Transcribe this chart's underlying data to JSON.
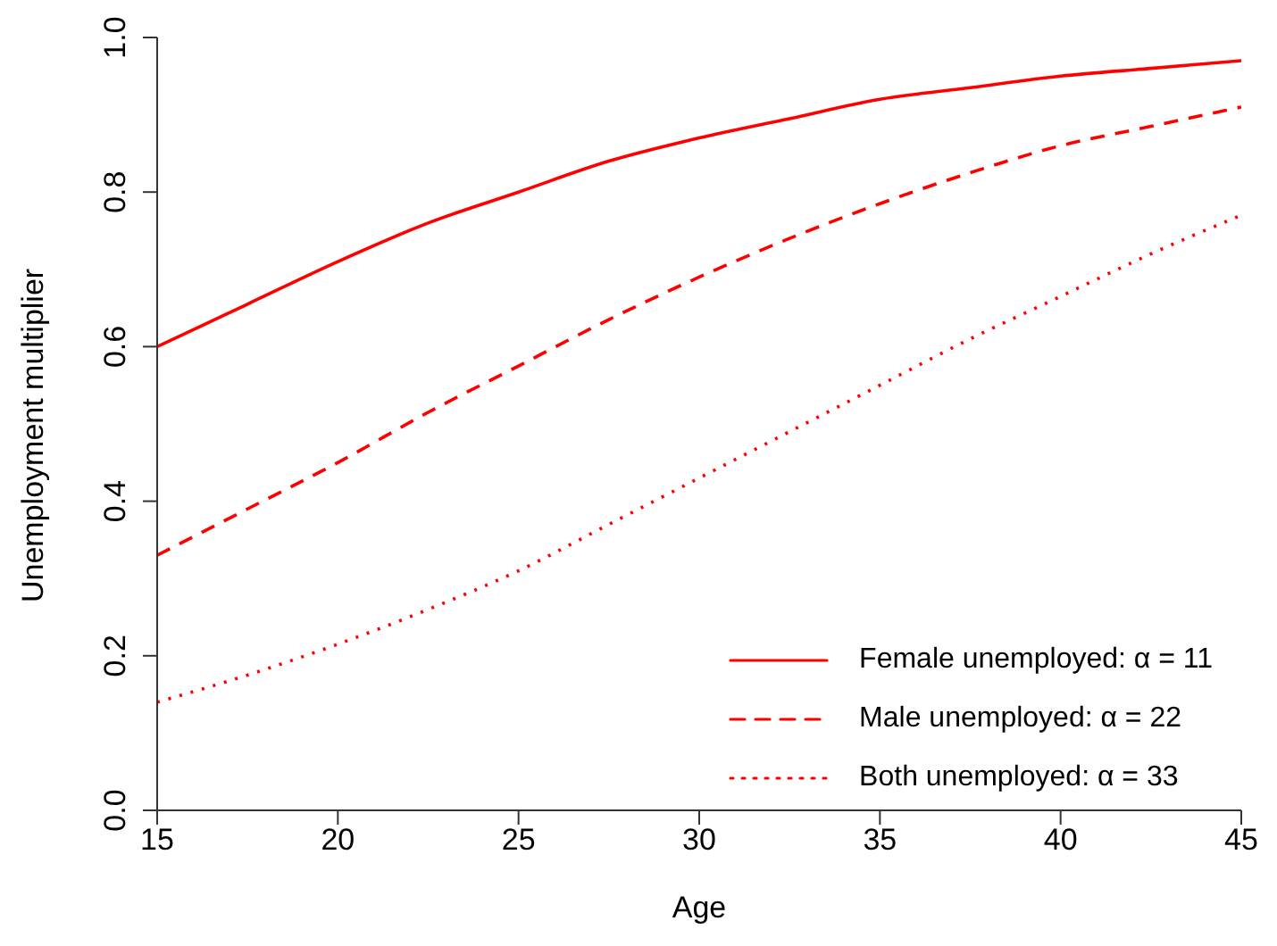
{
  "chart_data": {
    "type": "line",
    "xlabel": "Age",
    "ylabel": "Unemployment multiplier",
    "x": [
      15,
      17.5,
      20,
      22.5,
      25,
      27.5,
      30,
      32.5,
      35,
      37.5,
      40,
      42.5,
      45
    ],
    "series": [
      {
        "name": "Female unemployed: α = 11",
        "color": "#ff0000",
        "line_style": "solid",
        "values": [
          0.6,
          0.655,
          0.71,
          0.76,
          0.8,
          0.84,
          0.87,
          0.895,
          0.92,
          0.935,
          0.95,
          0.96,
          0.97
        ]
      },
      {
        "name": "Male unemployed: α = 22",
        "color": "#ff0000",
        "line_style": "dashed",
        "values": [
          0.33,
          0.39,
          0.45,
          0.515,
          0.575,
          0.635,
          0.69,
          0.74,
          0.785,
          0.825,
          0.86,
          0.885,
          0.91
        ]
      },
      {
        "name": "Both unemployed: α = 33",
        "color": "#ff0000",
        "line_style": "dotted",
        "values": [
          0.14,
          0.175,
          0.215,
          0.26,
          0.31,
          0.37,
          0.43,
          0.49,
          0.55,
          0.61,
          0.665,
          0.72,
          0.77
        ]
      }
    ],
    "xlim": [
      15,
      45
    ],
    "xticks": [
      15,
      20,
      25,
      30,
      35,
      40,
      45
    ],
    "ylim": [
      0,
      1
    ],
    "yticks": [
      {
        "value": 0,
        "label": "0.0"
      },
      0.2,
      0.4,
      0.6,
      0.8,
      {
        "value": 1,
        "label": "1.0"
      }
    ],
    "grid": false,
    "legend": "bottom right",
    "marker": "none"
  }
}
